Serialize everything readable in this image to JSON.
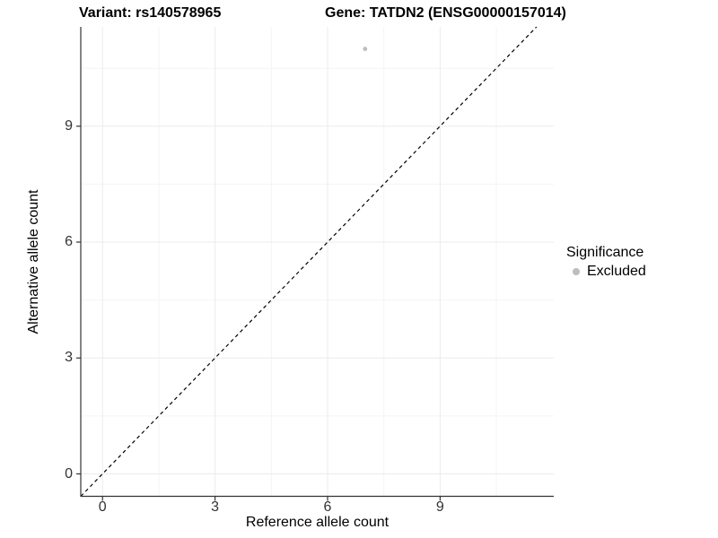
{
  "chart_data": {
    "type": "scatter",
    "title_left": "Variant: rs140578965",
    "title_right": "Gene: TATDN2 (ENSG00000157014)",
    "xlabel": "Reference allele count",
    "ylabel": "Alternative allele count",
    "x_ticks": [
      0,
      3,
      6,
      9
    ],
    "y_ticks": [
      0,
      3,
      6,
      9
    ],
    "x_minor_ticks": [
      1.5,
      4.5,
      7.5,
      10.5
    ],
    "y_minor_ticks": [
      1.5,
      4.5,
      7.5,
      10.5
    ],
    "xlim": [
      -0.58,
      12.03
    ],
    "ylim": [
      -0.58,
      11.57
    ],
    "grid": true,
    "reference_line": {
      "kind": "identity",
      "equation": "y = x",
      "style": "dashed",
      "color": "#000000"
    },
    "points": [
      {
        "x": 7,
        "y": 11,
        "significance": "Excluded"
      }
    ],
    "legend": {
      "position": "right",
      "title": "Significance",
      "items": [
        {
          "label": "Excluded",
          "color": "#bdbdbd"
        }
      ]
    },
    "colors": {
      "point": "#bdbdbd",
      "axis_line": "#333333",
      "tick_label": "#333333",
      "grid_major": "#ebebeb",
      "grid_minor": "#f4f4f4",
      "background": "#ffffff"
    }
  }
}
